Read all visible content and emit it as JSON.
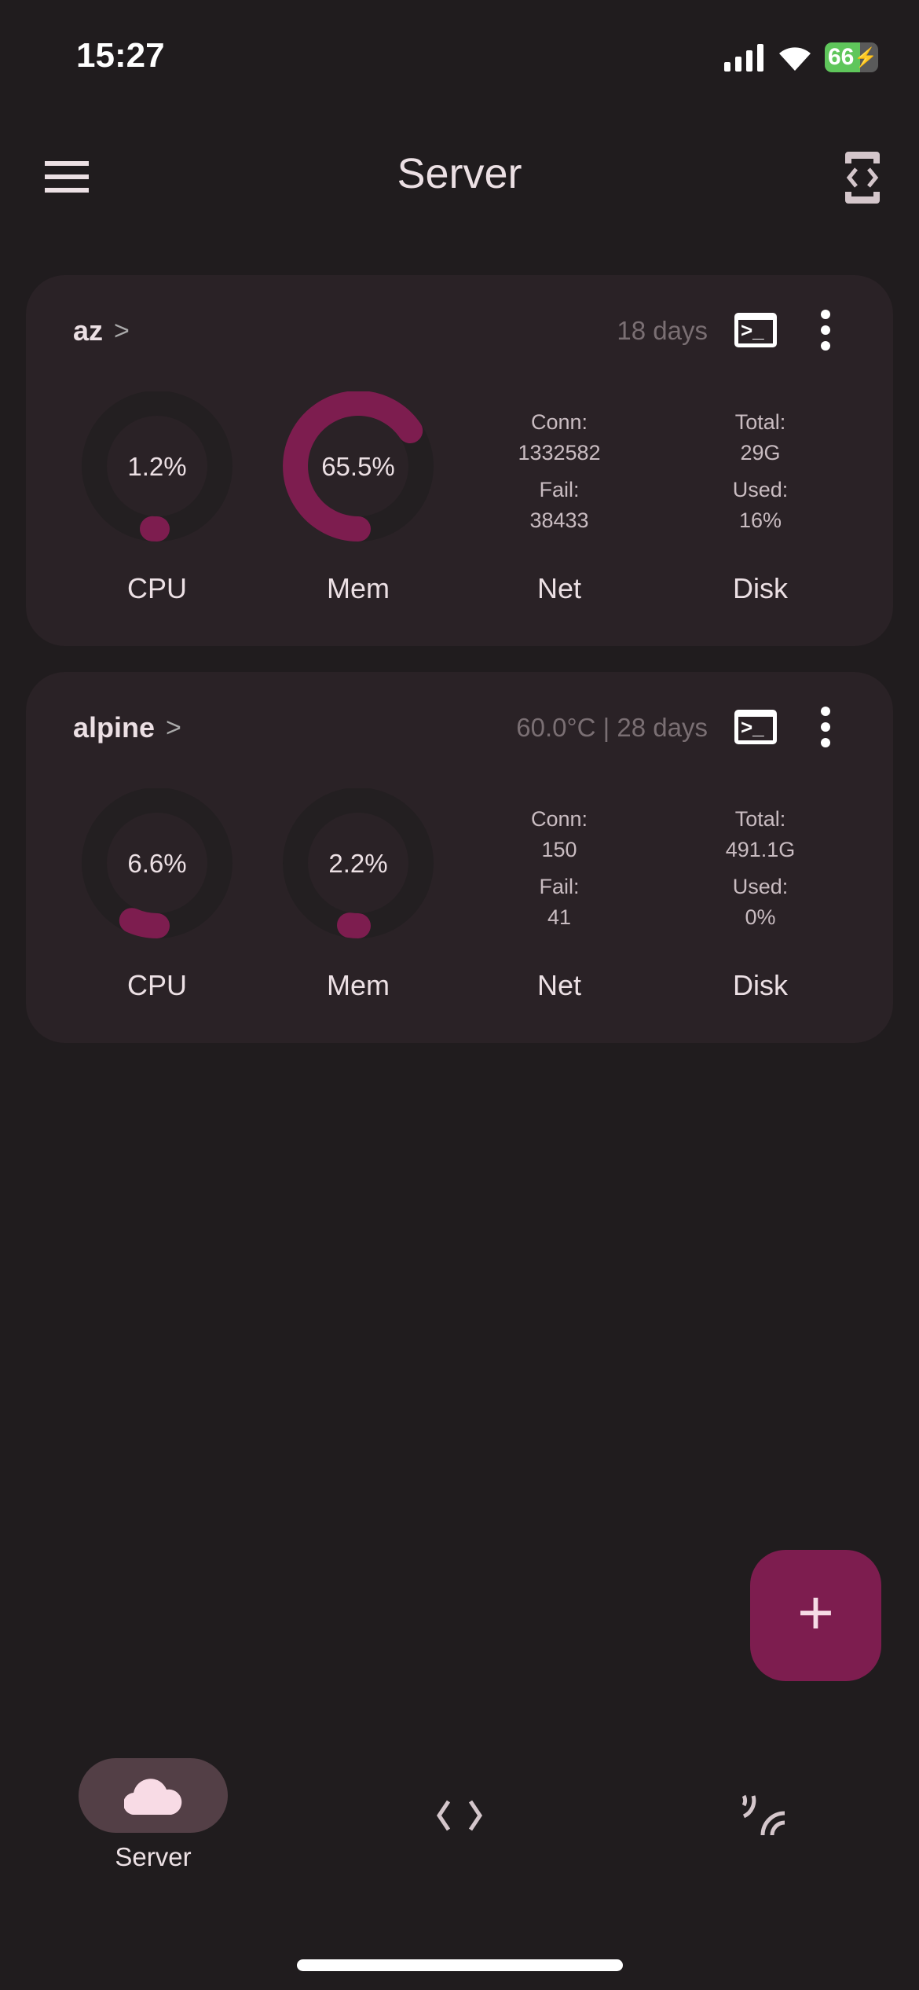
{
  "status_bar": {
    "time": "15:27",
    "battery": "66"
  },
  "header": {
    "title": "Server",
    "menu_icon": "hamburger-icon",
    "action_icon": "code-phone-icon"
  },
  "colors": {
    "accent": "#7d1d4f",
    "track": "#231f21",
    "card": "#2a2226",
    "background": "#201c1e"
  },
  "servers": [
    {
      "name": "az",
      "meta": "18 days",
      "cpu": {
        "value": 1.2,
        "text": "1.2%",
        "label": "CPU"
      },
      "mem": {
        "value": 65.5,
        "text": "65.5%",
        "label": "Mem"
      },
      "net": {
        "label": "Net",
        "conn_label": "Conn:",
        "conn": "1332582",
        "fail_label": "Fail:",
        "fail": "38433"
      },
      "disk": {
        "label": "Disk",
        "total_label": "Total:",
        "total": "29G",
        "used_label": "Used:",
        "used": "16%"
      }
    },
    {
      "name": "alpine",
      "meta": "60.0°C | 28 days",
      "cpu": {
        "value": 6.6,
        "text": "6.6%",
        "label": "CPU"
      },
      "mem": {
        "value": 2.2,
        "text": "2.2%",
        "label": "Mem"
      },
      "net": {
        "label": "Net",
        "conn_label": "Conn:",
        "conn": "150",
        "fail_label": "Fail:",
        "fail": "41"
      },
      "disk": {
        "label": "Disk",
        "total_label": "Total:",
        "total": "491.1G",
        "used_label": "Used:",
        "used": "0%"
      }
    }
  ],
  "fab": {
    "label": "+"
  },
  "bottom_nav": [
    {
      "label": "Server",
      "icon": "cloud-icon",
      "active": true
    },
    {
      "label": "",
      "icon": "code-icon"
    },
    {
      "label": "",
      "icon": "snippet-icon"
    }
  ]
}
